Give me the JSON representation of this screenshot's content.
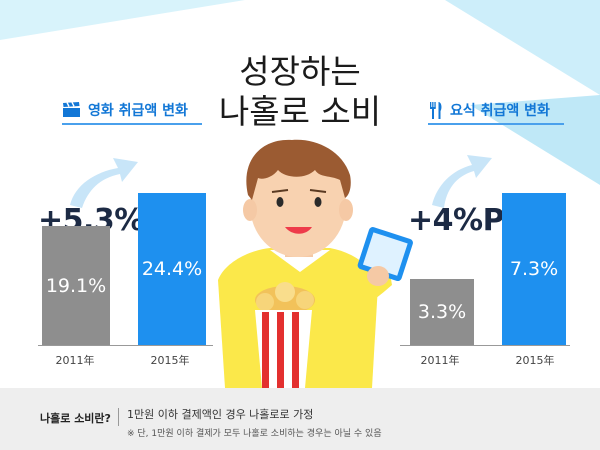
{
  "title": {
    "line1": "성장하는",
    "line2": "나홀로 소비"
  },
  "colors": {
    "accent": "#1e90ef",
    "gray": "#8e8e8e",
    "label": "#1277d6"
  },
  "footer": {
    "key": "나홀로 소비란?",
    "text": "1만원 이하 결제액인 경우 나홀로로 가정",
    "note": "※ 단, 1만원 이하 결제가 모두 나홀로 소비하는 경우는 아닐 수 있음"
  },
  "chart_data": [
    {
      "type": "bar",
      "label": "영화 취급액 변화",
      "icon": "clapperboard-icon",
      "growth": "+5.3%P",
      "categories": [
        "2011年",
        "2015年"
      ],
      "values": [
        19.1,
        24.4
      ],
      "value_labels": [
        "19.1%",
        "24.4%"
      ],
      "unit": "%"
    },
    {
      "type": "bar",
      "label": "요식 취급액 변화",
      "icon": "fork-knife-icon",
      "growth": "+4%P",
      "categories": [
        "2011年",
        "2015年"
      ],
      "values": [
        3.3,
        7.3
      ],
      "value_labels": [
        "3.3%",
        "7.3%"
      ],
      "unit": "%"
    }
  ]
}
